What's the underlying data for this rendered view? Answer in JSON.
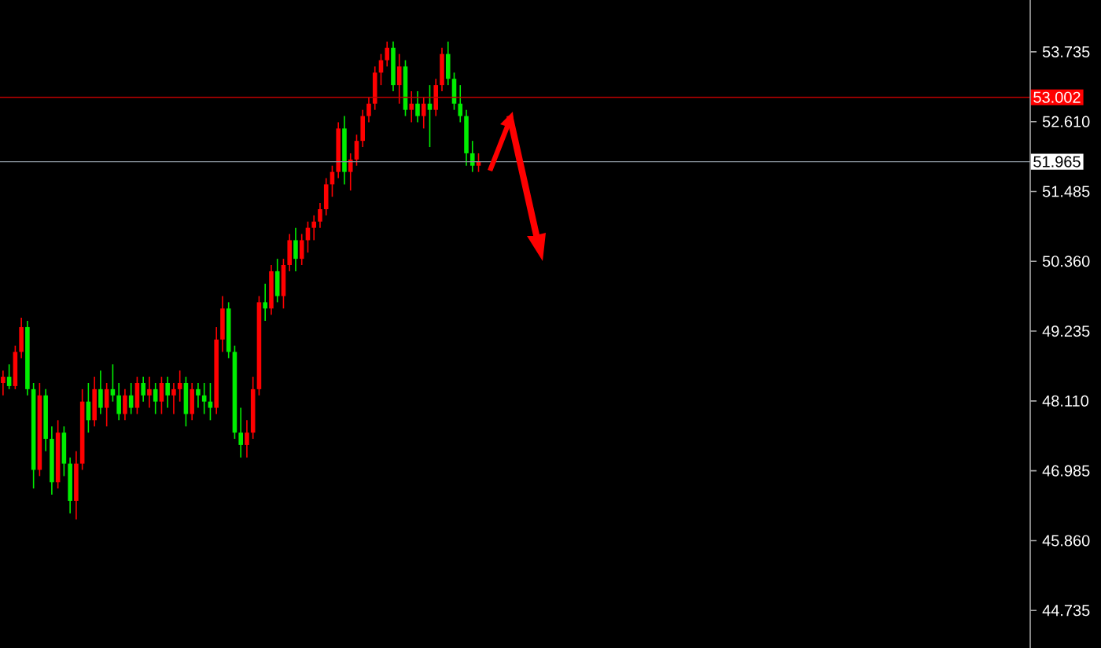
{
  "chart_data": {
    "type": "candlestick",
    "categories": [
      null,
      null,
      null,
      null,
      null,
      null,
      null,
      null,
      null,
      null,
      null,
      null,
      null,
      null,
      null,
      null,
      null,
      null,
      null,
      null,
      null,
      null,
      null,
      null,
      null,
      null,
      null,
      null,
      null,
      null,
      null,
      null,
      null,
      null,
      null,
      null,
      null,
      null,
      null,
      null,
      null,
      null,
      null,
      null,
      null,
      null,
      null,
      null,
      null,
      null,
      null,
      null,
      null,
      null,
      null,
      null,
      null,
      null,
      null,
      null,
      null,
      null,
      null,
      null,
      null,
      null,
      null,
      null,
      null,
      null,
      null,
      null,
      null,
      null,
      null,
      null,
      null,
      null,
      null,
      null,
      null,
      null,
      null,
      null,
      null,
      null,
      null,
      null,
      null,
      null,
      null,
      null,
      null,
      null,
      null,
      null,
      null,
      null,
      null,
      null,
      null,
      null,
      null,
      null,
      null,
      null,
      null,
      null,
      null,
      null,
      null,
      null,
      null,
      null,
      null,
      null,
      null,
      null,
      null,
      null,
      null,
      null,
      null,
      null,
      null,
      null,
      null,
      null,
      null,
      null,
      null,
      null,
      null,
      null,
      null,
      null,
      null,
      null,
      null,
      null,
      null,
      null,
      null,
      null,
      null,
      null,
      null,
      null,
      null,
      null,
      null,
      null,
      null,
      null,
      null,
      null,
      null,
      null,
      null,
      null,
      null,
      null,
      null,
      null,
      null,
      null,
      null,
      null,
      null
    ],
    "ohlc": [
      [
        48.4,
        48.6,
        48.2,
        48.5
      ],
      [
        48.5,
        48.7,
        48.3,
        48.35
      ],
      [
        48.35,
        49.0,
        48.3,
        48.9
      ],
      [
        48.9,
        49.45,
        48.8,
        49.3
      ],
      [
        49.3,
        49.4,
        48.2,
        48.3
      ],
      [
        48.3,
        48.4,
        46.7,
        47.0
      ],
      [
        47.0,
        48.4,
        46.9,
        48.2
      ],
      [
        48.2,
        48.3,
        47.3,
        47.5
      ],
      [
        47.5,
        47.7,
        46.6,
        46.8
      ],
      [
        46.8,
        47.8,
        46.7,
        47.6
      ],
      [
        47.6,
        47.7,
        46.9,
        47.1
      ],
      [
        47.1,
        47.2,
        46.3,
        46.5
      ],
      [
        46.5,
        47.3,
        46.2,
        47.1
      ],
      [
        47.1,
        48.3,
        47.0,
        48.1
      ],
      [
        48.1,
        48.4,
        47.6,
        47.8
      ],
      [
        47.8,
        48.5,
        47.7,
        48.3
      ],
      [
        48.3,
        48.6,
        47.9,
        48.0
      ],
      [
        48.0,
        48.4,
        47.7,
        48.3
      ],
      [
        48.3,
        48.7,
        48.1,
        48.2
      ],
      [
        48.2,
        48.4,
        47.8,
        47.9
      ],
      [
        47.9,
        48.3,
        47.8,
        48.2
      ],
      [
        48.2,
        48.4,
        47.9,
        48.0
      ],
      [
        48.0,
        48.5,
        47.9,
        48.4
      ],
      [
        48.4,
        48.5,
        48.1,
        48.2
      ],
      [
        48.2,
        48.5,
        48.0,
        48.3
      ],
      [
        48.3,
        48.4,
        47.9,
        48.1
      ],
      [
        48.1,
        48.5,
        47.9,
        48.4
      ],
      [
        48.4,
        48.5,
        48.0,
        48.2
      ],
      [
        48.2,
        48.4,
        47.9,
        48.3
      ],
      [
        48.3,
        48.6,
        48.1,
        48.4
      ],
      [
        48.4,
        48.5,
        47.7,
        47.9
      ],
      [
        47.9,
        48.4,
        47.8,
        48.3
      ],
      [
        48.3,
        48.4,
        48.0,
        48.2
      ],
      [
        48.2,
        48.4,
        47.9,
        48.1
      ],
      [
        48.1,
        48.4,
        47.8,
        48.0
      ],
      [
        48.0,
        49.3,
        47.9,
        49.1
      ],
      [
        49.1,
        49.8,
        48.9,
        49.6
      ],
      [
        49.6,
        49.7,
        48.8,
        48.9
      ],
      [
        48.9,
        49.0,
        47.5,
        47.6
      ],
      [
        47.6,
        48.0,
        47.2,
        47.4
      ],
      [
        47.4,
        47.8,
        47.2,
        47.6
      ],
      [
        47.6,
        48.5,
        47.5,
        48.3
      ],
      [
        48.3,
        49.8,
        48.2,
        49.7
      ],
      [
        49.7,
        50.0,
        49.4,
        49.6
      ],
      [
        49.6,
        50.3,
        49.5,
        50.2
      ],
      [
        50.2,
        50.4,
        49.7,
        49.8
      ],
      [
        49.8,
        50.4,
        49.6,
        50.3
      ],
      [
        50.3,
        50.8,
        50.2,
        50.7
      ],
      [
        50.7,
        50.9,
        50.2,
        50.4
      ],
      [
        50.4,
        50.8,
        50.3,
        50.7
      ],
      [
        50.7,
        51.0,
        50.5,
        50.9
      ],
      [
        50.9,
        51.1,
        50.7,
        51.0
      ],
      [
        51.0,
        51.3,
        50.9,
        51.2
      ],
      [
        51.2,
        51.7,
        51.1,
        51.6
      ],
      [
        51.6,
        51.9,
        51.4,
        51.8
      ],
      [
        51.8,
        52.6,
        51.7,
        52.5
      ],
      [
        52.5,
        52.7,
        51.6,
        51.8
      ],
      [
        51.8,
        52.1,
        51.5,
        52.0
      ],
      [
        52.0,
        52.4,
        51.9,
        52.3
      ],
      [
        52.3,
        52.8,
        52.2,
        52.7
      ],
      [
        52.7,
        53.0,
        52.6,
        52.9
      ],
      [
        52.9,
        53.5,
        52.8,
        53.4
      ],
      [
        53.4,
        53.7,
        53.2,
        53.6
      ],
      [
        53.6,
        53.9,
        53.5,
        53.8
      ],
      [
        53.8,
        53.9,
        53.1,
        53.2
      ],
      [
        53.2,
        53.7,
        52.9,
        53.5
      ],
      [
        53.5,
        53.6,
        52.7,
        52.8
      ],
      [
        52.8,
        53.1,
        52.6,
        52.9
      ],
      [
        52.9,
        53.1,
        52.6,
        52.7
      ],
      [
        52.7,
        53.0,
        52.5,
        52.9
      ],
      [
        52.9,
        53.2,
        52.2,
        52.8
      ],
      [
        52.8,
        53.3,
        52.7,
        53.2
      ],
      [
        53.2,
        53.8,
        53.1,
        53.7
      ],
      [
        53.7,
        53.9,
        53.2,
        53.3
      ],
      [
        53.3,
        53.4,
        52.8,
        52.9
      ],
      [
        52.9,
        53.2,
        52.6,
        52.7
      ],
      [
        52.7,
        52.8,
        51.9,
        52.1
      ],
      [
        52.1,
        52.3,
        51.8,
        51.9
      ],
      [
        51.9,
        52.1,
        51.8,
        51.965
      ],
      null,
      null,
      null,
      null,
      null,
      null,
      null,
      null,
      null,
      null,
      null,
      null,
      null,
      null,
      null,
      null,
      null,
      null,
      null,
      null,
      null,
      null,
      null,
      null,
      null,
      null,
      null,
      null,
      null,
      null,
      null,
      null,
      null,
      null,
      null,
      null,
      null,
      null,
      null,
      null,
      null,
      null,
      null,
      null,
      null,
      null,
      null,
      null,
      null,
      null,
      null,
      null,
      null,
      null,
      null,
      null,
      null,
      null,
      null,
      null,
      null,
      null,
      null,
      null,
      null,
      null,
      null,
      null,
      null,
      null,
      null,
      null,
      null,
      null,
      null,
      null,
      null,
      null,
      null,
      null,
      null,
      null,
      null,
      null,
      null,
      null,
      null,
      null,
      null,
      null
    ],
    "colors": [
      "#ff0000",
      "#00ee00",
      "#ff0000",
      "#ff0000",
      "#00ee00",
      "#00ee00",
      "#ff0000",
      "#00ee00",
      "#00ee00",
      "#ff0000",
      "#00ee00",
      "#00ee00",
      "#ff0000",
      "#ff0000",
      "#00ee00",
      "#ff0000",
      "#00ee00",
      "#ff0000",
      "#00ee00",
      "#00ee00",
      "#ff0000",
      "#00ee00",
      "#ff0000",
      "#00ee00",
      "#ff0000",
      "#00ee00",
      "#ff0000",
      "#00ee00",
      "#ff0000",
      "#ff0000",
      "#00ee00",
      "#ff0000",
      "#00ee00",
      "#00ee00",
      "#00ee00",
      "#ff0000",
      "#ff0000",
      "#00ee00",
      "#00ee00",
      "#00ee00",
      "#ff0000",
      "#ff0000",
      "#ff0000",
      "#00ee00",
      "#ff0000",
      "#00ee00",
      "#ff0000",
      "#ff0000",
      "#00ee00",
      "#ff0000",
      "#ff0000",
      "#ff0000",
      "#ff0000",
      "#ff0000",
      "#ff0000",
      "#ff0000",
      "#00ee00",
      "#ff0000",
      "#ff0000",
      "#ff0000",
      "#ff0000",
      "#ff0000",
      "#ff0000",
      "#ff0000",
      "#00ee00",
      "#ff0000",
      "#00ee00",
      "#ff0000",
      "#00ee00",
      "#ff0000",
      "#00ee00",
      "#ff0000",
      "#ff0000",
      "#00ee00",
      "#00ee00",
      "#00ee00",
      "#00ee00",
      "#00ee00",
      "#ff0000",
      null,
      null,
      null,
      null,
      null,
      null,
      null,
      null,
      null,
      null,
      null,
      null,
      null,
      null,
      null,
      null,
      null,
      null,
      null,
      null,
      null,
      null,
      null,
      null,
      null,
      null,
      null,
      null,
      null,
      null,
      null,
      null,
      null,
      null,
      null,
      null,
      null,
      null,
      null,
      null,
      null,
      null,
      null,
      null,
      null,
      null,
      null,
      null,
      null,
      null,
      null,
      null,
      null,
      null,
      null,
      null,
      null,
      null,
      null,
      null,
      null,
      null,
      null,
      null,
      null,
      null,
      null,
      null,
      null,
      null,
      null,
      null,
      null,
      null,
      null,
      null,
      null,
      null,
      null,
      null,
      null,
      null,
      null,
      null,
      null,
      null,
      null,
      null,
      null,
      null
    ],
    "ylim": [
      44.13,
      54.57
    ],
    "yticks": [
      {
        "value": 44.735,
        "label": "44.735"
      },
      {
        "value": 45.86,
        "label": "45.860"
      },
      {
        "value": 46.985,
        "label": "46.985"
      },
      {
        "value": 48.11,
        "label": "48.110"
      },
      {
        "value": 49.235,
        "label": "49.235"
      },
      {
        "value": 50.36,
        "label": "50.360"
      },
      {
        "value": 51.485,
        "label": "51.485"
      },
      {
        "value": 52.61,
        "label": "52.610"
      },
      {
        "value": 53.735,
        "label": "53.735"
      }
    ],
    "tick_labels": "y",
    "ref_lines": [
      {
        "axis": "y",
        "value": 53.002,
        "label": "53.002",
        "color": "#c00000"
      },
      {
        "axis": "y",
        "value": 51.965,
        "label": "51.965",
        "color": "#8c96a0"
      }
    ]
  }
}
